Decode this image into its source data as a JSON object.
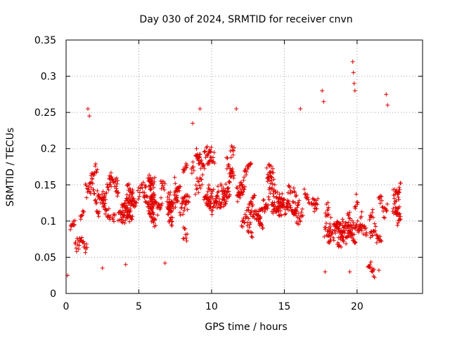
{
  "chart_data": {
    "type": "scatter",
    "title": "Day 030 of 2024, SRMTID for receiver cnvn",
    "xlabel": "GPS time / hours",
    "ylabel": "SRMTID / TECUs",
    "xlim": [
      0,
      24.5
    ],
    "ylim": [
      0,
      0.35
    ],
    "xticks": [
      0,
      5,
      10,
      15,
      20
    ],
    "xtick_labels": [
      "0",
      "5",
      "10",
      "15",
      "20"
    ],
    "yticks": [
      0,
      0.05,
      0.1,
      0.15,
      0.2,
      0.25,
      0.3,
      0.35
    ],
    "ytick_labels": [
      "0",
      "0.05",
      "0.1",
      "0.15",
      "0.2",
      "0.25",
      "0.3",
      "0.35"
    ],
    "grid": true,
    "marker": "plus",
    "series_color": "#e00000",
    "series": [
      {
        "name": "SRMTID",
        "profile": [
          {
            "t": 0.0,
            "mean": 0.06,
            "spread": 0.02
          },
          {
            "t": 0.5,
            "mean": 0.07,
            "spread": 0.03
          },
          {
            "t": 1.0,
            "mean": 0.11,
            "spread": 0.04
          },
          {
            "t": 1.5,
            "mean": 0.15,
            "spread": 0.05
          },
          {
            "t": 2.0,
            "mean": 0.12,
            "spread": 0.04
          },
          {
            "t": 3.0,
            "mean": 0.12,
            "spread": 0.04
          },
          {
            "t": 4.0,
            "mean": 0.12,
            "spread": 0.04
          },
          {
            "t": 5.0,
            "mean": 0.14,
            "spread": 0.04
          },
          {
            "t": 6.0,
            "mean": 0.13,
            "spread": 0.04
          },
          {
            "t": 7.0,
            "mean": 0.12,
            "spread": 0.04
          },
          {
            "t": 8.0,
            "mean": 0.13,
            "spread": 0.04
          },
          {
            "t": 9.0,
            "mean": 0.16,
            "spread": 0.05
          },
          {
            "t": 10.0,
            "mean": 0.14,
            "spread": 0.04
          },
          {
            "t": 11.0,
            "mean": 0.15,
            "spread": 0.05
          },
          {
            "t": 12.0,
            "mean": 0.14,
            "spread": 0.04
          },
          {
            "t": 13.0,
            "mean": 0.12,
            "spread": 0.04
          },
          {
            "t": 14.0,
            "mean": 0.13,
            "spread": 0.04
          },
          {
            "t": 15.0,
            "mean": 0.13,
            "spread": 0.05
          },
          {
            "t": 16.0,
            "mean": 0.13,
            "spread": 0.05
          },
          {
            "t": 17.0,
            "mean": 0.12,
            "spread": 0.05
          },
          {
            "t": 18.0,
            "mean": 0.1,
            "spread": 0.04
          },
          {
            "t": 19.0,
            "mean": 0.08,
            "spread": 0.03
          },
          {
            "t": 20.0,
            "mean": 0.11,
            "spread": 0.05
          },
          {
            "t": 21.0,
            "mean": 0.09,
            "spread": 0.04
          },
          {
            "t": 22.0,
            "mean": 0.12,
            "spread": 0.05
          },
          {
            "t": 23.0,
            "mean": 0.12,
            "spread": 0.04
          }
        ],
        "x_range": [
          0,
          23
        ],
        "n_points": 1400,
        "seed": 30,
        "spikes": [
          {
            "x": 1.5,
            "y": 0.255
          },
          {
            "x": 1.6,
            "y": 0.245
          },
          {
            "x": 8.7,
            "y": 0.235
          },
          {
            "x": 9.2,
            "y": 0.255
          },
          {
            "x": 11.7,
            "y": 0.255
          },
          {
            "x": 16.1,
            "y": 0.255
          },
          {
            "x": 17.6,
            "y": 0.28
          },
          {
            "x": 17.7,
            "y": 0.265
          },
          {
            "x": 19.7,
            "y": 0.32
          },
          {
            "x": 19.75,
            "y": 0.305
          },
          {
            "x": 19.8,
            "y": 0.29
          },
          {
            "x": 19.85,
            "y": 0.28
          },
          {
            "x": 22.0,
            "y": 0.275
          },
          {
            "x": 22.1,
            "y": 0.26
          },
          {
            "x": 2.5,
            "y": 0.035
          },
          {
            "x": 4.1,
            "y": 0.04
          },
          {
            "x": 6.8,
            "y": 0.042
          },
          {
            "x": 17.8,
            "y": 0.03
          },
          {
            "x": 19.5,
            "y": 0.03
          },
          {
            "x": 21.5,
            "y": 0.032
          },
          {
            "x": 0.1,
            "y": 0.025
          }
        ]
      }
    ]
  }
}
